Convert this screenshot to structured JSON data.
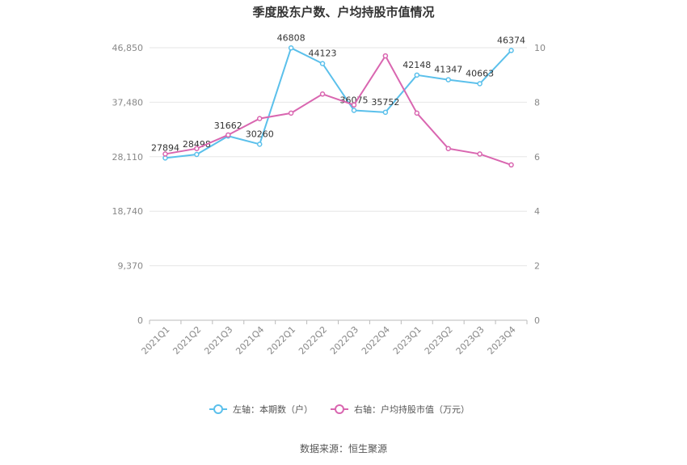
{
  "chart_data": {
    "type": "line",
    "title": "季度股东户数、户均持股市值情况",
    "categories": [
      "2021Q1",
      "2021Q2",
      "2021Q3",
      "2021Q4",
      "2022Q1",
      "2022Q2",
      "2022Q3",
      "2022Q4",
      "2023Q1",
      "2023Q2",
      "2023Q3",
      "2023Q4"
    ],
    "left_axis": {
      "ticks": [
        "0",
        "9,370",
        "18,740",
        "28,110",
        "37,480",
        "46,850"
      ],
      "ylim": [
        0,
        46850
      ]
    },
    "right_axis": {
      "ticks": [
        "0",
        "2",
        "4",
        "6",
        "8",
        "10"
      ],
      "ylim": [
        0,
        10
      ]
    },
    "series": [
      {
        "name": "左轴：本期数（户）",
        "axis": "left",
        "color": "#5bc0eb",
        "values": [
          27894,
          28498,
          31662,
          30260,
          46808,
          44123,
          36075,
          35752,
          42148,
          41347,
          40663,
          46374
        ],
        "labels": [
          "27894",
          "28498",
          "31662",
          "30260",
          "46808",
          "44123",
          "36075",
          "35752",
          "42148",
          "41347",
          "40663",
          "46374"
        ]
      },
      {
        "name": "右轴：户均持股市值（万元）",
        "axis": "right",
        "color": "#d966b0",
        "values": [
          6.1,
          6.3,
          6.8,
          7.4,
          7.6,
          8.3,
          7.9,
          9.7,
          7.6,
          6.3,
          6.1,
          5.7
        ]
      }
    ],
    "grid": true,
    "legend_position": "bottom"
  },
  "source_text": "数据来源：恒生聚源"
}
